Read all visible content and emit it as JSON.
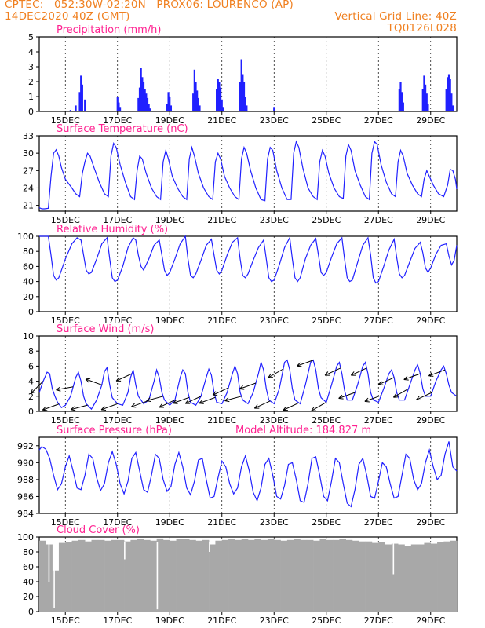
{
  "header": {
    "line1": "CPTEC:   052:30W-02:20N   PROX06: LOURENCO (AP)",
    "line2": "14DEC2020 40Z (GMT)",
    "grid_note": "Vertical Grid Line: 40Z",
    "run_id": "TQ0126L028"
  },
  "colors": {
    "title": "#ff2090",
    "header": "#f08020",
    "series": "#2020ff",
    "cloud": "#a8a8a8",
    "wind_arrow": "#000000"
  },
  "x_ticks": [
    "15DEC",
    "17DEC",
    "19DEC",
    "21DEC",
    "23DEC",
    "25DEC",
    "27DEC",
    "29DEC"
  ],
  "chart_data": [
    {
      "id": "precip",
      "type": "bar",
      "title": "Precipitation (mm/h)",
      "ylim": [
        0,
        5
      ],
      "yticks": [
        0,
        1,
        2,
        3,
        4,
        5
      ],
      "x_days": [
        1.2,
        1.4,
        1.55,
        1.6,
        1.65,
        1.75,
        3.0,
        3.05,
        3.1,
        3.8,
        3.85,
        3.9,
        3.95,
        4.0,
        4.05,
        4.1,
        4.15,
        4.2,
        4.25,
        4.9,
        4.95,
        5.0,
        5.05,
        5.9,
        5.95,
        6.0,
        6.05,
        6.1,
        6.15,
        6.8,
        6.85,
        6.9,
        6.95,
        7.0,
        7.05,
        7.7,
        7.75,
        7.8,
        7.85,
        7.9,
        7.95,
        9.0,
        13.8,
        13.85,
        13.9,
        13.95,
        14.7,
        14.75,
        14.8,
        14.85,
        14.9,
        15.6,
        15.65,
        15.7,
        15.75,
        15.8,
        15.85
      ],
      "values": [
        0.1,
        0.4,
        1.3,
        2.4,
        1.8,
        0.8,
        1.0,
        0.6,
        0.3,
        0.9,
        1.6,
        2.9,
        2.3,
        2.0,
        1.5,
        1.2,
        0.9,
        0.5,
        0.2,
        0.5,
        1.3,
        1.0,
        0.4,
        1.2,
        2.8,
        2.0,
        1.4,
        0.9,
        0.4,
        1.5,
        2.2,
        2.0,
        1.6,
        0.8,
        0.3,
        2.0,
        3.5,
        2.5,
        2.0,
        1.0,
        0.4,
        0.3,
        1.5,
        2.0,
        1.3,
        0.6,
        1.5,
        2.4,
        1.8,
        1.2,
        0.5,
        1.5,
        2.3,
        2.5,
        2.2,
        1.2,
        0.4
      ]
    },
    {
      "id": "temp",
      "type": "line",
      "title": "Surface Temperature (nC)",
      "ylim": [
        20,
        33
      ],
      "yticks": [
        21,
        24,
        27,
        30,
        33
      ],
      "x_days": [
        0.0,
        0.1,
        0.2,
        0.35,
        0.45,
        0.55,
        0.65,
        0.75,
        0.85,
        1.0,
        1.25,
        1.4,
        1.55,
        1.65,
        1.75,
        1.85,
        1.95,
        2.1,
        2.3,
        2.5,
        2.65,
        2.75,
        2.85,
        2.95,
        3.1,
        3.3,
        3.5,
        3.65,
        3.75,
        3.85,
        3.95,
        4.1,
        4.3,
        4.5,
        4.65,
        4.75,
        4.85,
        4.95,
        5.1,
        5.3,
        5.5,
        5.65,
        5.75,
        5.85,
        5.95,
        6.1,
        6.3,
        6.5,
        6.65,
        6.75,
        6.85,
        6.95,
        7.1,
        7.3,
        7.5,
        7.65,
        7.75,
        7.85,
        7.95,
        8.1,
        8.3,
        8.5,
        8.65,
        8.75,
        8.85,
        8.95,
        9.1,
        9.3,
        9.5,
        9.65,
        9.75,
        9.85,
        9.95,
        10.1,
        10.3,
        10.5,
        10.65,
        10.75,
        10.85,
        10.95,
        11.1,
        11.3,
        11.5,
        11.65,
        11.75,
        11.85,
        11.95,
        12.1,
        12.3,
        12.5,
        12.65,
        12.75,
        12.85,
        12.95,
        13.1,
        13.3,
        13.5,
        13.65,
        13.75,
        13.85,
        13.95,
        14.1,
        14.3,
        14.5,
        14.65,
        14.75,
        14.85,
        14.95,
        15.1,
        15.3,
        15.5,
        15.65,
        15.75,
        15.85,
        15.95,
        16.0
      ],
      "values": [
        20.6,
        20.4,
        20.4,
        20.5,
        26.0,
        30.0,
        30.6,
        29.5,
        27.5,
        25.5,
        24.0,
        23.0,
        22.5,
        26.5,
        28.5,
        30.0,
        29.5,
        27.5,
        25.0,
        23.0,
        22.5,
        29.5,
        31.7,
        31.0,
        28.0,
        25.0,
        22.5,
        22.0,
        27.0,
        29.5,
        29.0,
        26.5,
        24.0,
        22.5,
        22.0,
        28.5,
        30.5,
        29.0,
        26.0,
        24.0,
        22.5,
        22.0,
        29.0,
        31.0,
        29.5,
        26.5,
        24.0,
        22.5,
        22.0,
        28.5,
        30.0,
        29.0,
        26.0,
        24.0,
        22.5,
        22.0,
        29.0,
        31.0,
        30.0,
        27.0,
        24.0,
        22.0,
        21.8,
        29.0,
        31.0,
        30.5,
        27.0,
        24.0,
        22.0,
        22.0,
        30.0,
        32.0,
        31.0,
        27.5,
        24.0,
        22.5,
        22.0,
        28.5,
        30.5,
        29.5,
        26.5,
        24.0,
        22.5,
        22.2,
        29.5,
        31.5,
        30.5,
        27.0,
        24.5,
        22.5,
        22.0,
        30.0,
        32.0,
        31.5,
        28.0,
        25.0,
        23.0,
        22.5,
        28.5,
        30.5,
        29.5,
        26.5,
        24.5,
        23.0,
        22.5,
        25.5,
        27.0,
        26.0,
        24.5,
        23.0,
        22.5,
        24.5,
        27.2,
        27.0,
        25.5,
        23.8
      ]
    },
    {
      "id": "rh",
      "type": "line",
      "title": "Relative Humidity (%)",
      "ylim": [
        0,
        100
      ],
      "yticks": [
        0,
        20,
        40,
        60,
        80,
        100
      ],
      "x_days": [
        0.0,
        0.2,
        0.35,
        0.45,
        0.55,
        0.65,
        0.75,
        0.85,
        1.0,
        1.25,
        1.45,
        1.6,
        1.7,
        1.8,
        1.9,
        2.0,
        2.2,
        2.4,
        2.6,
        2.7,
        2.8,
        2.9,
        3.0,
        3.2,
        3.4,
        3.6,
        3.7,
        3.8,
        3.9,
        4.0,
        4.2,
        4.4,
        4.6,
        4.7,
        4.8,
        4.9,
        5.0,
        5.2,
        5.4,
        5.6,
        5.7,
        5.8,
        5.9,
        6.0,
        6.2,
        6.4,
        6.6,
        6.7,
        6.8,
        6.9,
        7.0,
        7.2,
        7.4,
        7.6,
        7.7,
        7.8,
        7.9,
        8.0,
        8.2,
        8.4,
        8.6,
        8.7,
        8.8,
        8.9,
        9.0,
        9.2,
        9.4,
        9.6,
        9.7,
        9.8,
        9.9,
        10.0,
        10.2,
        10.4,
        10.6,
        10.7,
        10.8,
        10.9,
        11.0,
        11.2,
        11.4,
        11.6,
        11.7,
        11.8,
        11.9,
        12.0,
        12.2,
        12.4,
        12.6,
        12.7,
        12.8,
        12.9,
        13.0,
        13.2,
        13.4,
        13.6,
        13.7,
        13.8,
        13.9,
        14.0,
        14.2,
        14.4,
        14.6,
        14.7,
        14.8,
        14.9,
        15.0,
        15.2,
        15.4,
        15.6,
        15.7,
        15.8,
        15.9,
        16.0
      ],
      "values": [
        100,
        100,
        100,
        75,
        48,
        42,
        45,
        55,
        70,
        90,
        98,
        95,
        75,
        55,
        50,
        52,
        70,
        90,
        98,
        70,
        45,
        40,
        42,
        60,
        85,
        98,
        95,
        75,
        60,
        55,
        70,
        88,
        95,
        75,
        55,
        48,
        52,
        70,
        90,
        100,
        70,
        48,
        45,
        50,
        68,
        88,
        96,
        75,
        55,
        50,
        55,
        75,
        92,
        98,
        70,
        48,
        45,
        50,
        68,
        85,
        95,
        70,
        45,
        40,
        42,
        62,
        85,
        98,
        70,
        45,
        40,
        45,
        70,
        88,
        97,
        75,
        52,
        48,
        52,
        72,
        90,
        98,
        70,
        45,
        40,
        42,
        65,
        88,
        98,
        75,
        45,
        38,
        40,
        60,
        82,
        96,
        72,
        50,
        45,
        48,
        66,
        84,
        92,
        78,
        58,
        52,
        58,
        76,
        88,
        90,
        74,
        62,
        68,
        88
      ]
    },
    {
      "id": "wind",
      "type": "line",
      "title": "Surface Wind (m/s)",
      "ylim": [
        0,
        10
      ],
      "yticks": [
        0,
        2,
        4,
        6,
        8,
        10
      ],
      "x_days": [
        0.0,
        0.15,
        0.3,
        0.4,
        0.5,
        0.6,
        0.7,
        0.85,
        1.0,
        1.2,
        1.4,
        1.5,
        1.6,
        1.7,
        1.8,
        2.0,
        2.2,
        2.4,
        2.5,
        2.6,
        2.7,
        2.8,
        3.0,
        3.2,
        3.4,
        3.5,
        3.6,
        3.7,
        3.8,
        4.0,
        4.2,
        4.4,
        4.5,
        4.6,
        4.7,
        4.8,
        5.0,
        5.2,
        5.4,
        5.5,
        5.6,
        5.7,
        5.8,
        6.0,
        6.2,
        6.4,
        6.5,
        6.6,
        6.7,
        6.8,
        7.0,
        7.2,
        7.4,
        7.5,
        7.6,
        7.7,
        7.8,
        8.0,
        8.2,
        8.4,
        8.5,
        8.6,
        8.7,
        8.8,
        9.0,
        9.2,
        9.4,
        9.5,
        9.6,
        9.7,
        9.8,
        10.0,
        10.2,
        10.4,
        10.5,
        10.6,
        10.7,
        10.8,
        11.0,
        11.2,
        11.4,
        11.5,
        11.6,
        11.7,
        11.8,
        12.0,
        12.2,
        12.4,
        12.5,
        12.6,
        12.7,
        12.8,
        13.0,
        13.2,
        13.4,
        13.5,
        13.6,
        13.7,
        13.8,
        14.0,
        14.2,
        14.4,
        14.5,
        14.6,
        14.7,
        14.8,
        15.0,
        15.2,
        15.4,
        15.5,
        15.6,
        15.7,
        15.8,
        16.0
      ],
      "values": [
        2.5,
        4.0,
        5.2,
        5.0,
        3.0,
        2.0,
        1.2,
        0.5,
        0.8,
        2.0,
        4.5,
        5.2,
        4.0,
        2.0,
        1.0,
        0.3,
        1.5,
        3.5,
        5.3,
        5.8,
        3.5,
        1.8,
        1.0,
        0.8,
        2.5,
        4.5,
        5.5,
        3.5,
        2.0,
        1.0,
        1.5,
        4.0,
        5.5,
        4.5,
        2.5,
        1.5,
        0.8,
        1.5,
        4.5,
        5.5,
        5.0,
        2.5,
        1.2,
        0.8,
        2.0,
        4.5,
        5.6,
        4.8,
        2.5,
        1.2,
        1.0,
        2.5,
        5.0,
        6.0,
        5.0,
        2.5,
        1.5,
        1.0,
        2.5,
        5.0,
        6.5,
        5.5,
        3.0,
        1.5,
        1.0,
        3.0,
        6.5,
        6.8,
        5.5,
        3.0,
        1.5,
        1.0,
        3.5,
        6.5,
        6.8,
        5.5,
        3.0,
        1.8,
        1.2,
        3.5,
        6.0,
        6.5,
        5.0,
        2.8,
        1.5,
        1.5,
        3.5,
        6.0,
        6.5,
        5.0,
        2.5,
        1.5,
        1.2,
        3.0,
        5.0,
        5.5,
        4.5,
        2.5,
        1.5,
        1.5,
        3.5,
        5.5,
        6.2,
        5.0,
        3.0,
        2.0,
        2.0,
        4.0,
        5.5,
        6.0,
        5.0,
        3.5,
        2.5,
        2.0
      ],
      "arrows": {
        "x_days": [
          0.15,
          0.75,
          1.3,
          1.85,
          2.4,
          3.0,
          3.55,
          4.15,
          4.75,
          5.2,
          5.75,
          6.2,
          6.75,
          7.25,
          7.75,
          8.3,
          8.85,
          9.35,
          9.95,
          10.5,
          11.0,
          11.55,
          12.1,
          12.55,
          13.1,
          13.6,
          14.15,
          14.6,
          15.05,
          15.55
        ],
        "angle_deg": [
          225,
          200,
          190,
          195,
          160,
          200,
          205,
          200,
          195,
          205,
          200,
          205,
          200,
          205,
          195,
          200,
          205,
          210,
          205,
          200,
          210,
          205,
          200,
          205,
          200,
          205,
          210,
          200,
          205,
          200
        ]
      }
    },
    {
      "id": "press",
      "type": "line",
      "title": "Surface Pressure (hPa)",
      "subtitle": "Model Altitude: 184.827 m",
      "ylim": [
        984,
        993
      ],
      "yticks": [
        984,
        986,
        988,
        990,
        992
      ],
      "x_days": [
        0.0,
        0.1,
        0.25,
        0.4,
        0.55,
        0.7,
        0.85,
        1.0,
        1.15,
        1.3,
        1.45,
        1.6,
        1.75,
        1.9,
        2.05,
        2.2,
        2.35,
        2.5,
        2.65,
        2.8,
        2.95,
        3.1,
        3.25,
        3.4,
        3.55,
        3.7,
        3.85,
        4.0,
        4.15,
        4.3,
        4.45,
        4.6,
        4.75,
        4.9,
        5.05,
        5.2,
        5.35,
        5.5,
        5.65,
        5.8,
        5.95,
        6.1,
        6.25,
        6.4,
        6.55,
        6.7,
        6.85,
        7.0,
        7.15,
        7.3,
        7.45,
        7.6,
        7.75,
        7.9,
        8.05,
        8.2,
        8.35,
        8.5,
        8.65,
        8.8,
        8.95,
        9.1,
        9.25,
        9.4,
        9.55,
        9.7,
        9.85,
        10.0,
        10.15,
        10.3,
        10.45,
        10.6,
        10.75,
        10.9,
        11.05,
        11.2,
        11.35,
        11.5,
        11.65,
        11.8,
        11.95,
        12.1,
        12.25,
        12.4,
        12.55,
        12.7,
        12.85,
        13.0,
        13.15,
        13.3,
        13.45,
        13.6,
        13.75,
        13.9,
        14.05,
        14.2,
        14.35,
        14.5,
        14.65,
        14.8,
        14.95,
        15.1,
        15.25,
        15.4,
        15.55,
        15.7,
        15.85,
        16.0
      ],
      "values": [
        991.5,
        991.9,
        991.6,
        990.5,
        988.5,
        986.8,
        987.5,
        989.5,
        990.8,
        989.0,
        987.0,
        986.8,
        988.5,
        991.0,
        990.5,
        988.2,
        986.7,
        987.5,
        990.0,
        991.3,
        989.8,
        987.5,
        986.3,
        987.8,
        990.5,
        991.2,
        989.0,
        986.8,
        986.5,
        988.5,
        991.0,
        990.5,
        988.0,
        986.6,
        987.2,
        989.8,
        991.2,
        989.5,
        987.0,
        986.2,
        987.8,
        990.3,
        990.5,
        988.0,
        985.8,
        986.0,
        988.2,
        990.2,
        989.5,
        987.5,
        986.3,
        987.0,
        989.5,
        990.8,
        989.0,
        986.5,
        985.5,
        987.0,
        989.8,
        990.5,
        988.5,
        986.0,
        985.7,
        987.3,
        989.8,
        990.0,
        988.0,
        985.5,
        985.3,
        987.5,
        990.5,
        990.7,
        988.5,
        986.0,
        985.5,
        987.8,
        990.5,
        990.0,
        987.5,
        985.2,
        984.8,
        986.8,
        989.8,
        990.5,
        988.5,
        986.0,
        985.8,
        987.8,
        990.0,
        989.5,
        987.5,
        985.8,
        986.0,
        988.5,
        991.0,
        990.5,
        988.0,
        986.8,
        987.5,
        990.0,
        991.5,
        989.5,
        988.0,
        988.5,
        991.0,
        992.5,
        989.5,
        989.0
      ]
    },
    {
      "id": "cloud",
      "type": "bar",
      "title": "Cloud Cover (%)",
      "ylim": [
        0,
        100
      ],
      "yticks": [
        0,
        20,
        40,
        60,
        80,
        100
      ],
      "x_days": [
        0.0,
        0.25,
        0.5,
        0.75,
        1.0,
        1.25,
        1.5,
        1.75,
        2.0,
        2.25,
        2.5,
        2.75,
        3.0,
        3.25,
        3.5,
        3.75,
        4.0,
        4.25,
        4.5,
        4.75,
        5.0,
        5.25,
        5.5,
        5.75,
        6.0,
        6.25,
        6.5,
        6.75,
        7.0,
        7.25,
        7.5,
        7.75,
        8.0,
        8.25,
        8.5,
        8.75,
        9.0,
        9.25,
        9.5,
        9.75,
        10.0,
        10.25,
        10.5,
        10.75,
        11.0,
        11.25,
        11.5,
        11.75,
        12.0,
        12.25,
        12.5,
        12.75,
        13.0,
        13.25,
        13.5,
        13.75,
        14.0,
        14.25,
        14.5,
        14.75,
        15.0,
        15.25,
        15.5,
        15.75
      ],
      "values": [
        95,
        90,
        55,
        92,
        93,
        95,
        96,
        94,
        96,
        96,
        95,
        96,
        96,
        94,
        96,
        97,
        96,
        95,
        98,
        96,
        95,
        97,
        97,
        96,
        95,
        96,
        90,
        95,
        96,
        97,
        96,
        97,
        96,
        97,
        96,
        97,
        96,
        95,
        96,
        97,
        96,
        96,
        95,
        97,
        96,
        96,
        97,
        96,
        95,
        94,
        94,
        92,
        93,
        90,
        91,
        90,
        88,
        90,
        90,
        92,
        91,
        93,
        94,
        95
      ],
      "dropouts": {
        "x_days": [
          0.35,
          0.55,
          3.25,
          4.5,
          6.5,
          13.55
        ],
        "values": [
          40,
          5,
          70,
          3,
          80,
          50
        ]
      }
    }
  ]
}
